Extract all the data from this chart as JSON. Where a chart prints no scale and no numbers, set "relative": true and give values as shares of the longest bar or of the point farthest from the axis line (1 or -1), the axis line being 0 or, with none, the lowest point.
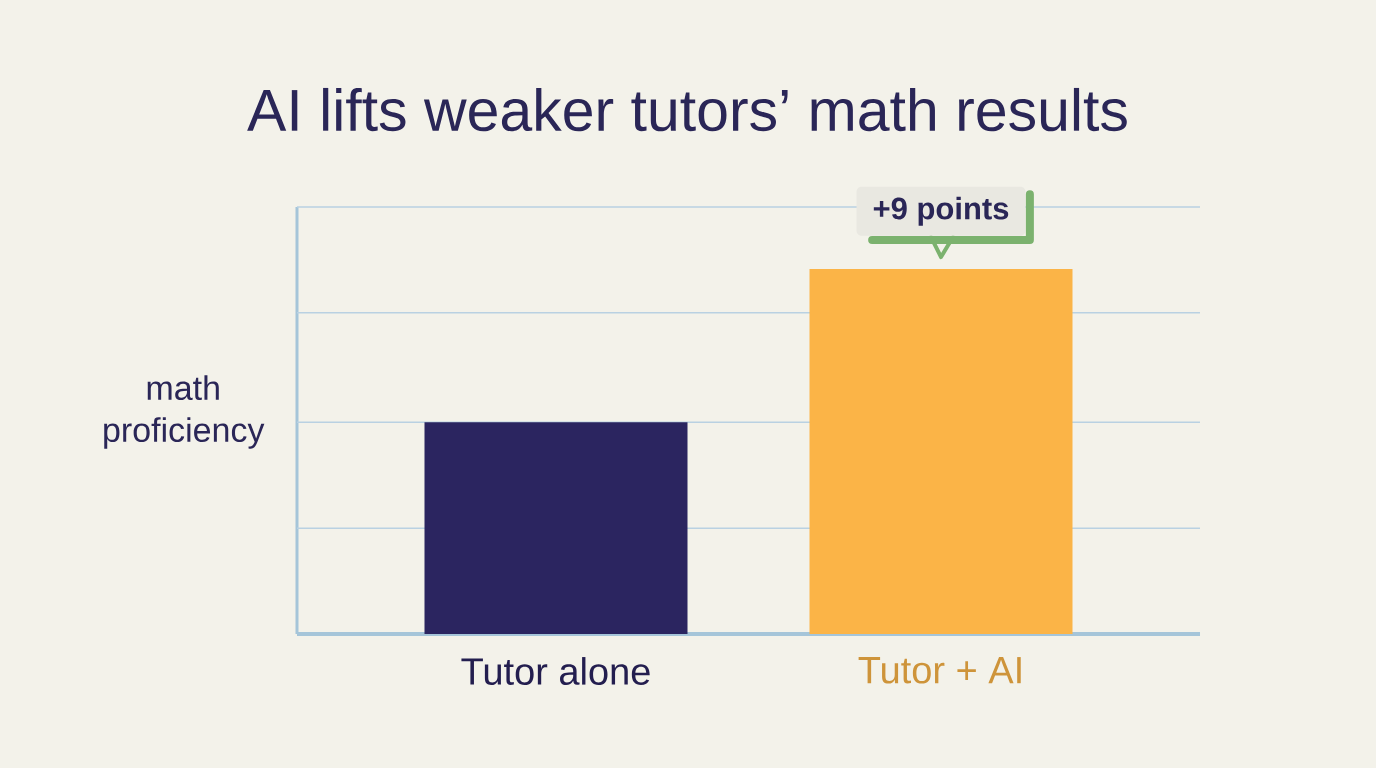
{
  "chart_data": {
    "type": "bar",
    "title": "AI lifts weaker tutors’ math results",
    "ylabel": "math proficiency",
    "categories": [
      "Tutor alone",
      "Tutor + AI"
    ],
    "values": [
      0.58,
      1
    ],
    "colors": [
      "#2b2560",
      "#fbb447"
    ],
    "relative": true,
    "ref_lines": [
      {
        "axis": "y",
        "value": 0.29,
        "color": "#b9d1e2"
      },
      {
        "axis": "y",
        "value": 0.58,
        "color": "#b9d1e2"
      },
      {
        "axis": "y",
        "value": 0.88,
        "color": "#b9d1e2"
      },
      {
        "axis": "y",
        "value": 1.17,
        "color": "#b9d1e2"
      }
    ],
    "annotations": [
      {
        "text": "+9 points",
        "x": "Tutor + AI",
        "y": 1
      }
    ]
  }
}
